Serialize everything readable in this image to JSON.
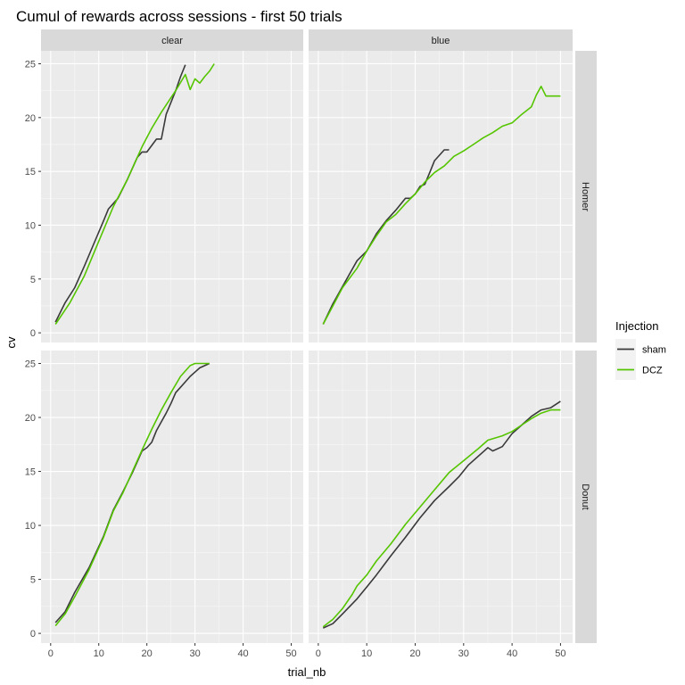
{
  "chart_data": {
    "type": "line",
    "title": "Cumul of rewards across sessions - first 50 trials",
    "xlabel": "trial_nb",
    "ylabel": "cv",
    "xlim": [
      -2,
      52.5
    ],
    "ylim": [
      -0.9,
      26.2
    ],
    "x_ticks": [
      0,
      10,
      20,
      30,
      40,
      50
    ],
    "y_ticks": [
      0,
      5,
      10,
      15,
      20,
      25
    ],
    "x_tick_labels": [
      "0",
      "10",
      "20",
      "30",
      "40",
      "50"
    ],
    "y_tick_labels": [
      "0",
      "5",
      "10",
      "15",
      "20",
      "25"
    ],
    "grid": true,
    "col_facets": [
      "clear",
      "blue"
    ],
    "row_facets": [
      "Homer",
      "Donut"
    ],
    "legend": {
      "title": "Injection",
      "position": "right",
      "entries": [
        {
          "label": "sham",
          "color": "#3a3a3a"
        },
        {
          "label": "DCZ",
          "color": "#55c500"
        }
      ]
    },
    "panels": [
      {
        "col": "clear",
        "row": "Homer",
        "series": [
          {
            "name": "sham",
            "color": "#3a3a3a",
            "points": [
              [
                1,
                1
              ],
              [
                3,
                2.8
              ],
              [
                5,
                4.2
              ],
              [
                7,
                6.2
              ],
              [
                9,
                8.3
              ],
              [
                11,
                10.4
              ],
              [
                12,
                11.5
              ],
              [
                14,
                12.5
              ],
              [
                16,
                14.3
              ],
              [
                18,
                16.3
              ],
              [
                19,
                16.8
              ],
              [
                20,
                16.8
              ],
              [
                22,
                18
              ],
              [
                23,
                18
              ],
              [
                24,
                20.3
              ],
              [
                26,
                22.5
              ],
              [
                27,
                23.8
              ],
              [
                28,
                24.9
              ]
            ]
          },
          {
            "name": "DCZ",
            "color": "#55c500",
            "points": [
              [
                1,
                0.8
              ],
              [
                4,
                2.8
              ],
              [
                7,
                5.3
              ],
              [
                10,
                8.5
              ],
              [
                13,
                11.7
              ],
              [
                16,
                14.3
              ],
              [
                19,
                17.3
              ],
              [
                21,
                19
              ],
              [
                23,
                20.5
              ],
              [
                26,
                22.5
              ],
              [
                28,
                24
              ],
              [
                29,
                22.6
              ],
              [
                30,
                23.6
              ],
              [
                31,
                23.2
              ],
              [
                32,
                23.8
              ],
              [
                33,
                24.3
              ],
              [
                34,
                25
              ]
            ]
          }
        ]
      },
      {
        "col": "blue",
        "row": "Homer",
        "series": [
          {
            "name": "sham",
            "color": "#3a3a3a",
            "points": [
              [
                1,
                0.8
              ],
              [
                3,
                2.7
              ],
              [
                5,
                4.3
              ],
              [
                7,
                5.9
              ],
              [
                8,
                6.7
              ],
              [
                10,
                7.6
              ],
              [
                12,
                9.2
              ],
              [
                14,
                10.4
              ],
              [
                16,
                11.4
              ],
              [
                18,
                12.5
              ],
              [
                19,
                12.5
              ],
              [
                20,
                12.9
              ],
              [
                21,
                13.6
              ],
              [
                22,
                13.8
              ],
              [
                23,
                14.9
              ],
              [
                24,
                16
              ],
              [
                26,
                17
              ],
              [
                27,
                17
              ]
            ]
          },
          {
            "name": "DCZ",
            "color": "#55c500",
            "points": [
              [
                1,
                0.8
              ],
              [
                3,
                2.5
              ],
              [
                5,
                4.2
              ],
              [
                8,
                6
              ],
              [
                10,
                7.6
              ],
              [
                12,
                9
              ],
              [
                14,
                10.3
              ],
              [
                16,
                11
              ],
              [
                18,
                12
              ],
              [
                20,
                12.9
              ],
              [
                22,
                14
              ],
              [
                24,
                14.9
              ],
              [
                26,
                15.5
              ],
              [
                28,
                16.4
              ],
              [
                30,
                16.9
              ],
              [
                32,
                17.5
              ],
              [
                34,
                18.1
              ],
              [
                36,
                18.6
              ],
              [
                38,
                19.2
              ],
              [
                40,
                19.5
              ],
              [
                42,
                20.3
              ],
              [
                44,
                21
              ],
              [
                45,
                22.1
              ],
              [
                46,
                22.9
              ],
              [
                47,
                22
              ],
              [
                50,
                22
              ]
            ]
          }
        ]
      },
      {
        "col": "clear",
        "row": "Donut",
        "series": [
          {
            "name": "sham",
            "color": "#3a3a3a",
            "points": [
              [
                1,
                1
              ],
              [
                3,
                2
              ],
              [
                5,
                3.8
              ],
              [
                8,
                6.1
              ],
              [
                11,
                9
              ],
              [
                13,
                11.4
              ],
              [
                15,
                13.1
              ],
              [
                17,
                14.9
              ],
              [
                19,
                16.9
              ],
              [
                20,
                17.2
              ],
              [
                21,
                17.7
              ],
              [
                22,
                18.8
              ],
              [
                23,
                19.6
              ],
              [
                24,
                20.4
              ],
              [
                25,
                21.3
              ],
              [
                26,
                22.3
              ],
              [
                27,
                22.8
              ],
              [
                28,
                23.3
              ],
              [
                29,
                23.8
              ],
              [
                30,
                24.2
              ],
              [
                31,
                24.6
              ],
              [
                33,
                25
              ]
            ]
          },
          {
            "name": "DCZ",
            "color": "#55c500",
            "points": [
              [
                1,
                0.7
              ],
              [
                3,
                1.8
              ],
              [
                5,
                3.4
              ],
              [
                8,
                5.9
              ],
              [
                11,
                8.9
              ],
              [
                13,
                11.3
              ],
              [
                15,
                13
              ],
              [
                17,
                15
              ],
              [
                19,
                17
              ],
              [
                21,
                18.9
              ],
              [
                23,
                20.7
              ],
              [
                25,
                22.3
              ],
              [
                27,
                23.8
              ],
              [
                29,
                24.8
              ],
              [
                30,
                25
              ],
              [
                33,
                25
              ]
            ]
          }
        ]
      },
      {
        "col": "blue",
        "row": "Donut",
        "series": [
          {
            "name": "sham",
            "color": "#3a3a3a",
            "points": [
              [
                1,
                0.5
              ],
              [
                3,
                0.9
              ],
              [
                5,
                1.8
              ],
              [
                8,
                3.2
              ],
              [
                10,
                4.3
              ],
              [
                12,
                5.4
              ],
              [
                15,
                7.2
              ],
              [
                18,
                8.9
              ],
              [
                21,
                10.7
              ],
              [
                24,
                12.3
              ],
              [
                27,
                13.6
              ],
              [
                29,
                14.5
              ],
              [
                31,
                15.6
              ],
              [
                34,
                16.8
              ],
              [
                35,
                17.2
              ],
              [
                36,
                16.9
              ],
              [
                38,
                17.3
              ],
              [
                40,
                18.5
              ],
              [
                42,
                19.3
              ],
              [
                44,
                20.1
              ],
              [
                46,
                20.7
              ],
              [
                48,
                20.9
              ],
              [
                50,
                21.5
              ]
            ]
          },
          {
            "name": "DCZ",
            "color": "#55c500",
            "points": [
              [
                1,
                0.6
              ],
              [
                3,
                1.3
              ],
              [
                5,
                2.3
              ],
              [
                7,
                3.6
              ],
              [
                8,
                4.4
              ],
              [
                10,
                5.4
              ],
              [
                12,
                6.7
              ],
              [
                15,
                8.3
              ],
              [
                18,
                10.1
              ],
              [
                21,
                11.7
              ],
              [
                24,
                13.3
              ],
              [
                27,
                14.9
              ],
              [
                30,
                16
              ],
              [
                33,
                17.1
              ],
              [
                35,
                17.9
              ],
              [
                38,
                18.3
              ],
              [
                40,
                18.7
              ],
              [
                42,
                19.3
              ],
              [
                44,
                19.9
              ],
              [
                46,
                20.4
              ],
              [
                48,
                20.7
              ],
              [
                50,
                20.7
              ]
            ]
          }
        ]
      }
    ]
  }
}
